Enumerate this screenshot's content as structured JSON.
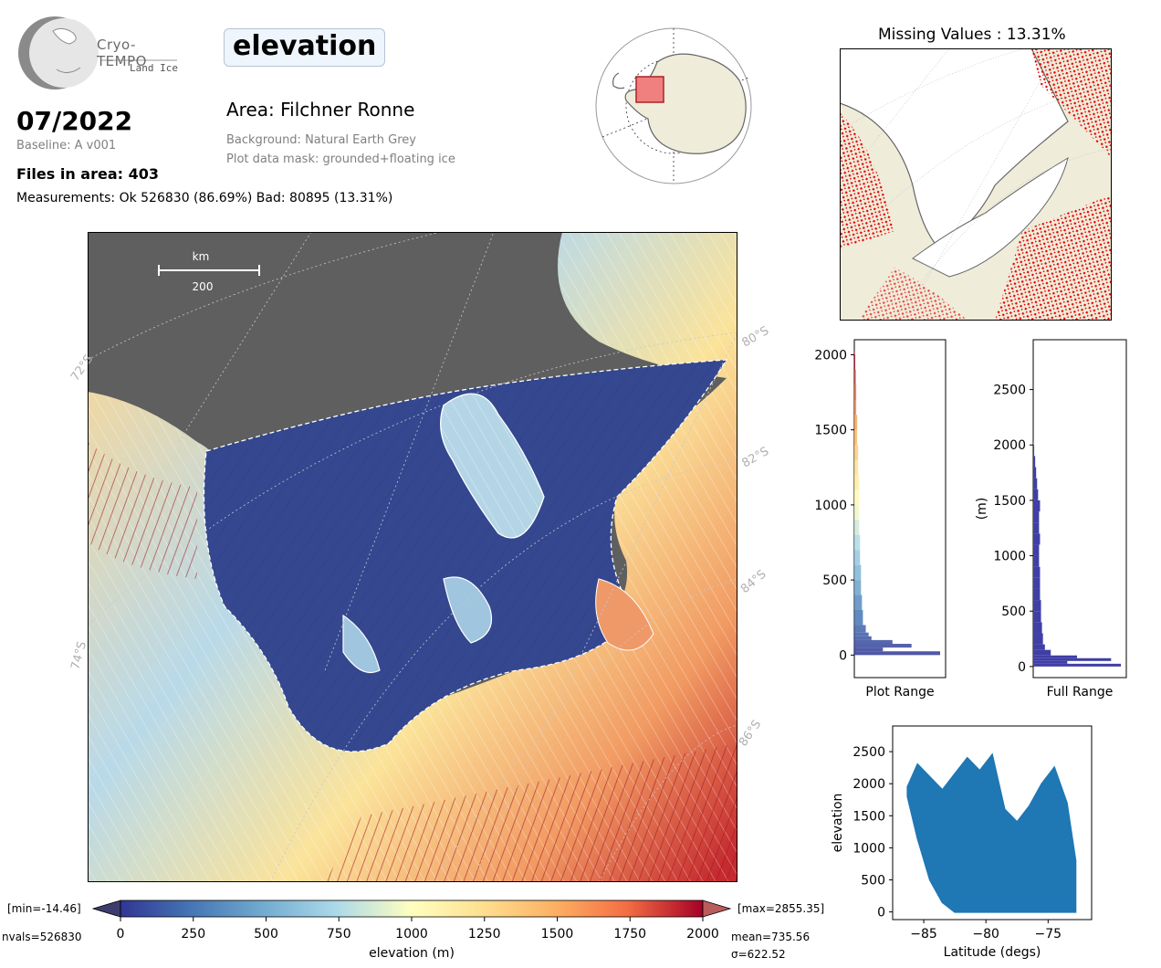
{
  "logo": {
    "name": "Cryo-TEMPO",
    "sub": "Land Ice"
  },
  "header": {
    "parameter": "elevation",
    "date": "07/2022",
    "baseline": "Baseline: A v001",
    "area": "Area: Filchner Ronne",
    "background": "Background: Natural Earth Grey",
    "mask": "Plot data mask: grounded+floating ice",
    "files": "Files in area: 403",
    "measurements": "Measurements: Ok 526830 (86.69%) Bad: 80895 (13.31%)"
  },
  "map": {
    "scale_unit": "km",
    "scale_value": "200",
    "lat_labels_left": [
      "72°S",
      "74°S"
    ],
    "lat_labels_right": [
      "80°S",
      "82°S",
      "84°S",
      "86°S"
    ]
  },
  "missing": {
    "title": "Missing Values : 13.31%"
  },
  "colorbar": {
    "min_label": "[min=-14.46]",
    "max_label": "[max=2855.35]",
    "nvals": "nvals=526830",
    "mean": "mean=735.56",
    "sigma": "σ=622.52",
    "xlabel": "elevation (m)",
    "ticks": [
      "0",
      "250",
      "500",
      "750",
      "1000",
      "1250",
      "1500",
      "1750",
      "2000"
    ]
  },
  "colors": {
    "ocean": "#5f5f5f",
    "land": "#efecda",
    "missing": "#e60000",
    "hist_full": "#3f3fa6",
    "scatter": "#1f77b4"
  },
  "chart_data": [
    {
      "type": "heatmap",
      "title": "elevation",
      "xlabel": "elevation (m)",
      "colorbar_range": [
        0,
        2000
      ],
      "stats": {
        "min": -14.46,
        "max": 2855.35,
        "nvals": 526830,
        "mean": 735.56,
        "sigma": 622.52
      }
    },
    {
      "type": "bar",
      "orientation": "horizontal",
      "xlabel": "Plot Range",
      "ylim": [
        -150,
        2100
      ],
      "yticks": [
        "0",
        "500",
        "1000",
        "1500",
        "2000"
      ],
      "bins": [
        0,
        25,
        50,
        75,
        100,
        125,
        150,
        200,
        300,
        400,
        500,
        600,
        700,
        800,
        900,
        1000,
        1100,
        1200,
        1300,
        1400,
        1500,
        1600,
        1700,
        1800,
        1900,
        2000
      ],
      "values": [
        90,
        30,
        60,
        40,
        18,
        15,
        12,
        9,
        8,
        7,
        7,
        6,
        6,
        5,
        5,
        5,
        5,
        4,
        4,
        3,
        3,
        2,
        2,
        1.5,
        1,
        0.5
      ]
    },
    {
      "type": "bar",
      "orientation": "horizontal",
      "xlabel": "Full Range",
      "ylabel": "(m)",
      "ylim": [
        -100,
        2950
      ],
      "yticks": [
        "0",
        "500",
        "1000",
        "1500",
        "2000",
        "2500"
      ],
      "bins": [
        0,
        25,
        50,
        75,
        100,
        150,
        200,
        300,
        400,
        500,
        600,
        700,
        800,
        900,
        1000,
        1100,
        1200,
        1300,
        1400,
        1500,
        1600,
        1700,
        1800,
        1900,
        2000
      ],
      "values": [
        90,
        35,
        80,
        45,
        18,
        12,
        10,
        9,
        8,
        8,
        7,
        7,
        7,
        6,
        6,
        7,
        6,
        6,
        7,
        5,
        4,
        3,
        2,
        1,
        0.5
      ]
    },
    {
      "type": "scatter",
      "xlabel": "Latitude (degs)",
      "ylabel": "elevation",
      "xlim": [
        -87.5,
        -71.5
      ],
      "ylim": [
        -120,
        2900
      ],
      "xticks": [
        "−85",
        "−80",
        "−75"
      ],
      "yticks": [
        "0",
        "500",
        "1000",
        "1500",
        "2000",
        "2500"
      ],
      "envelope_upper": [
        [
          -86.3,
          1950
        ],
        [
          -85.5,
          2300
        ],
        [
          -84.5,
          2100
        ],
        [
          -83.5,
          1900
        ],
        [
          -82.5,
          2150
        ],
        [
          -81.5,
          2400
        ],
        [
          -80.5,
          2200
        ],
        [
          -79.5,
          2450
        ],
        [
          -78.5,
          1600
        ],
        [
          -77.5,
          1400
        ],
        [
          -76.5,
          1650
        ],
        [
          -75.5,
          2000
        ],
        [
          -74.5,
          2250
        ],
        [
          -73.5,
          1700
        ],
        [
          -72.8,
          800
        ]
      ],
      "envelope_lower": [
        [
          -86.3,
          1800
        ],
        [
          -85.5,
          1150
        ],
        [
          -84.5,
          500
        ],
        [
          -83.5,
          150
        ],
        [
          -82.5,
          0
        ],
        [
          -80.5,
          0
        ],
        [
          -78.5,
          0
        ],
        [
          -76.5,
          0
        ],
        [
          -74.5,
          0
        ],
        [
          -72.8,
          0
        ]
      ]
    }
  ]
}
